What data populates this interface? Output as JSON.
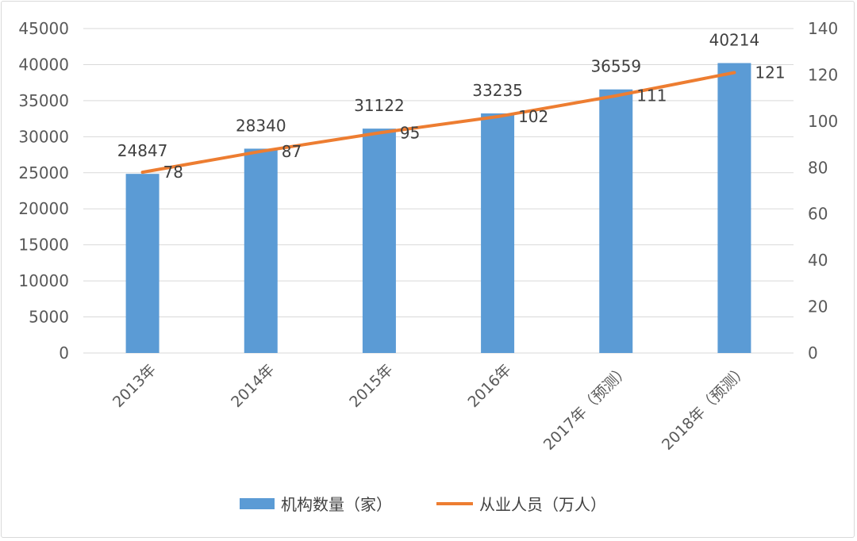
{
  "chart_data": {
    "type": "bar",
    "title": "",
    "categories": [
      "2013年",
      "2014年",
      "2015年",
      "2016年",
      "2017年（预测）",
      "2018年（预测）"
    ],
    "series": [
      {
        "name": "机构数量（家）",
        "type": "bar",
        "axis": "left",
        "values": [
          24847,
          28340,
          31122,
          33235,
          36559,
          40214
        ],
        "color": "#5b9bd5"
      },
      {
        "name": "从业人员（万人）",
        "type": "line",
        "axis": "right",
        "values": [
          78,
          87,
          95,
          102,
          111,
          121
        ],
        "color": "#ed7d31"
      }
    ],
    "y_left": {
      "range": [
        0,
        45000
      ],
      "ticks": [
        "0",
        "5000",
        "10000",
        "15000",
        "20000",
        "25000",
        "30000",
        "35000",
        "40000",
        "45000"
      ]
    },
    "y_right": {
      "range": [
        0,
        140
      ],
      "ticks": [
        "0",
        "20",
        "40",
        "60",
        "80",
        "100",
        "120",
        "140"
      ]
    },
    "grid": true,
    "legend": "bottom",
    "gridColor": "#d9d9d9"
  }
}
